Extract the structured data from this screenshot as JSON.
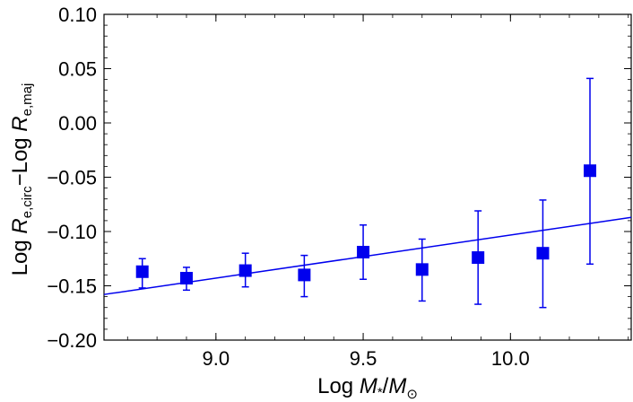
{
  "chart_data": {
    "type": "scatter",
    "xlabel": {
      "prefix": "Log ",
      "m1": "M",
      "m1_sub": "*",
      "slash": "/",
      "m2": "M",
      "m2_sub": "⊙"
    },
    "ylabel": {
      "prefix": "Log ",
      "r1": "R",
      "r1_sub": "e,circ",
      "mid": "−Log ",
      "r2": "R",
      "r2_sub": "e,maj"
    },
    "xlim": [
      8.62,
      10.41
    ],
    "ylim": [
      -0.2,
      0.1
    ],
    "xticks": [
      {
        "value": 9.0,
        "label": "9.0"
      },
      {
        "value": 9.5,
        "label": "9.5"
      },
      {
        "value": 10.0,
        "label": "10.0"
      }
    ],
    "yticks": [
      {
        "value": 0.1,
        "label": "0.10"
      },
      {
        "value": 0.05,
        "label": "0.05"
      },
      {
        "value": 0.0,
        "label": "0.00"
      },
      {
        "value": -0.05,
        "label": "−0.05"
      },
      {
        "value": -0.1,
        "label": "−0.10"
      },
      {
        "value": -0.15,
        "label": "−0.15"
      },
      {
        "value": -0.2,
        "label": "−0.20"
      }
    ],
    "series": [
      {
        "marker": "square",
        "color": "#0000ee",
        "points": [
          {
            "x": 8.75,
            "y": -0.137,
            "y_lo": -0.152,
            "y_hi": -0.125
          },
          {
            "x": 8.9,
            "y": -0.143,
            "y_lo": -0.154,
            "y_hi": -0.133
          },
          {
            "x": 9.1,
            "y": -0.136,
            "y_lo": -0.151,
            "y_hi": -0.12
          },
          {
            "x": 9.3,
            "y": -0.14,
            "y_lo": -0.16,
            "y_hi": -0.122
          },
          {
            "x": 9.5,
            "y": -0.119,
            "y_lo": -0.144,
            "y_hi": -0.094
          },
          {
            "x": 9.7,
            "y": -0.135,
            "y_lo": -0.164,
            "y_hi": -0.107
          },
          {
            "x": 9.89,
            "y": -0.124,
            "y_lo": -0.167,
            "y_hi": -0.081
          },
          {
            "x": 10.11,
            "y": -0.12,
            "y_lo": -0.17,
            "y_hi": -0.071
          },
          {
            "x": 10.27,
            "y": -0.044,
            "y_lo": -0.13,
            "y_hi": 0.041
          }
        ]
      }
    ],
    "fit_line": {
      "color": "#0000ee",
      "points": [
        {
          "x": 8.62,
          "y": -0.158
        },
        {
          "x": 10.41,
          "y": -0.087
        }
      ]
    },
    "grid": false
  }
}
